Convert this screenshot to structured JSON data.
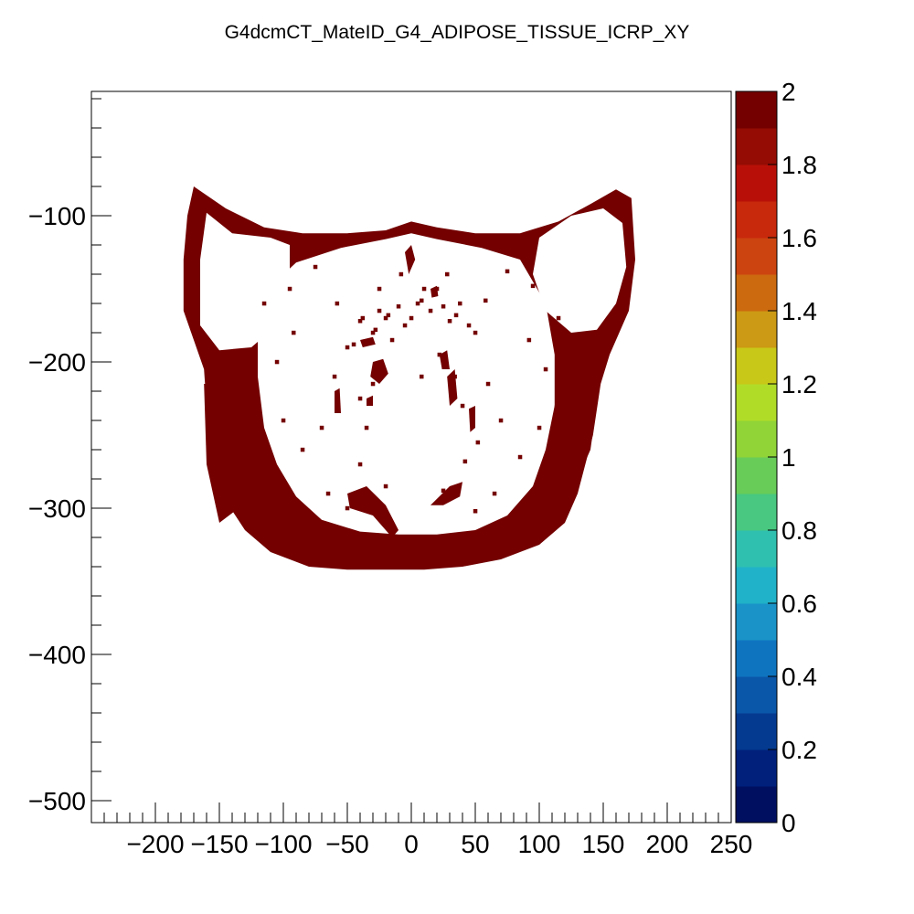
{
  "chart_data": {
    "type": "heatmap",
    "title": "G4dcmCT_MateID_G4_ADIPOSE_TISSUE_ICRP_XY",
    "xlabel": "",
    "ylabel": "",
    "xlim": [
      -250,
      250
    ],
    "ylim": [
      -515,
      -15
    ],
    "x_ticks": [
      -200,
      -150,
      -100,
      -50,
      0,
      50,
      100,
      150,
      200,
      250
    ],
    "y_ticks": [
      -100,
      -200,
      -300,
      -400,
      -500
    ],
    "x_tick_labels": [
      "−200",
      "−150",
      "−100",
      "−50",
      "0",
      "50",
      "100",
      "150",
      "200",
      "250"
    ],
    "y_tick_labels": [
      "−100",
      "−200",
      "−300",
      "−400",
      "−500"
    ],
    "colorbar": {
      "min": 0,
      "max": 2,
      "labels": [
        "0",
        "0.2",
        "0.4",
        "0.6",
        "0.8",
        "1",
        "1.2",
        "1.4",
        "1.6",
        "1.8",
        "2"
      ],
      "colors": [
        "#000f60",
        "#00207c",
        "#043a90",
        "#0a56a8",
        "#0e74c0",
        "#1a94c8",
        "#20b2c8",
        "#30c0b0",
        "#48c880",
        "#68cc58",
        "#90d438",
        "#b0dc28",
        "#c8c818",
        "#cc9a14",
        "#cc6a10",
        "#cc4410",
        "#c8280c",
        "#b81008",
        "#940c04",
        "#740000"
      ]
    },
    "fill_value": 2,
    "fill_color": "#740000",
    "regions": {
      "outer_boundary": [
        [
          -170,
          -80
        ],
        [
          -145,
          -95
        ],
        [
          -115,
          -108
        ],
        [
          -85,
          -112
        ],
        [
          -50,
          -112
        ],
        [
          -20,
          -110
        ],
        [
          0,
          -104
        ],
        [
          20,
          -108
        ],
        [
          50,
          -112
        ],
        [
          85,
          -112
        ],
        [
          115,
          -104
        ],
        [
          140,
          -92
        ],
        [
          160,
          -82
        ],
        [
          172,
          -88
        ],
        [
          175,
          -130
        ],
        [
          170,
          -165
        ],
        [
          155,
          -195
        ],
        [
          148,
          -215
        ],
        [
          142,
          -250
        ],
        [
          130,
          -290
        ],
        [
          120,
          -310
        ],
        [
          100,
          -325
        ],
        [
          70,
          -335
        ],
        [
          40,
          -340
        ],
        [
          10,
          -342
        ],
        [
          -20,
          -342
        ],
        [
          -50,
          -342
        ],
        [
          -80,
          -340
        ],
        [
          -110,
          -330
        ],
        [
          -130,
          -315
        ],
        [
          -145,
          -295
        ],
        [
          -155,
          -260
        ],
        [
          -160,
          -230
        ],
        [
          -162,
          -205
        ],
        [
          -170,
          -185
        ],
        [
          -178,
          -165
        ],
        [
          -178,
          -130
        ],
        [
          -175,
          -100
        ]
      ],
      "inner_cavity": [
        [
          -55,
          -122
        ],
        [
          -20,
          -116
        ],
        [
          0,
          -112
        ],
        [
          20,
          -116
        ],
        [
          55,
          -122
        ],
        [
          85,
          -130
        ],
        [
          105,
          -160
        ],
        [
          112,
          -195
        ],
        [
          112,
          -230
        ],
        [
          105,
          -260
        ],
        [
          95,
          -285
        ],
        [
          75,
          -305
        ],
        [
          50,
          -315
        ],
        [
          20,
          -318
        ],
        [
          -10,
          -318
        ],
        [
          -40,
          -316
        ],
        [
          -70,
          -308
        ],
        [
          -90,
          -292
        ],
        [
          -105,
          -270
        ],
        [
          -115,
          -245
        ],
        [
          -120,
          -210
        ],
        [
          -120,
          -175
        ],
        [
          -112,
          -150
        ],
        [
          -90,
          -132
        ]
      ],
      "left_lobe": [
        [
          -160,
          -98
        ],
        [
          -140,
          -112
        ],
        [
          -110,
          -115
        ],
        [
          -95,
          -120
        ],
        [
          -95,
          -150
        ],
        [
          -105,
          -175
        ],
        [
          -125,
          -190
        ],
        [
          -150,
          -192
        ],
        [
          -165,
          -175
        ],
        [
          -165,
          -130
        ]
      ],
      "right_lobe": [
        [
          100,
          -115
        ],
        [
          125,
          -100
        ],
        [
          150,
          -95
        ],
        [
          165,
          -105
        ],
        [
          168,
          -135
        ],
        [
          160,
          -160
        ],
        [
          145,
          -178
        ],
        [
          125,
          -180
        ],
        [
          105,
          -165
        ],
        [
          95,
          -140
        ]
      ],
      "left_notch": [
        [
          -162,
          -215
        ],
        [
          -130,
          -215
        ],
        [
          -125,
          -260
        ],
        [
          -135,
          -300
        ],
        [
          -150,
          -310
        ],
        [
          -160,
          -270
        ]
      ],
      "right_notch": [
        [
          118,
          -200
        ],
        [
          150,
          -198
        ],
        [
          140,
          -260
        ],
        [
          120,
          -300
        ],
        [
          112,
          -280
        ],
        [
          112,
          -230
        ]
      ]
    },
    "specks": [
      [
        -50,
        -190
      ],
      [
        -45,
        -188
      ],
      [
        -40,
        -172
      ],
      [
        -38,
        -170
      ],
      [
        -30,
        -180
      ],
      [
        -28,
        -178
      ],
      [
        -25,
        -165
      ],
      [
        -20,
        -170
      ],
      [
        -18,
        -168
      ],
      [
        -10,
        -162
      ],
      [
        -5,
        -175
      ],
      [
        0,
        -170
      ],
      [
        5,
        -160
      ],
      [
        8,
        -158
      ],
      [
        15,
        -165
      ],
      [
        20,
        -150
      ],
      [
        25,
        -162
      ],
      [
        30,
        -172
      ],
      [
        35,
        -168
      ],
      [
        38,
        -160
      ],
      [
        45,
        -175
      ],
      [
        50,
        -180
      ],
      [
        -60,
        -210
      ],
      [
        60,
        -215
      ],
      [
        -70,
        -245
      ],
      [
        70,
        -240
      ],
      [
        -85,
        -260
      ],
      [
        85,
        -265
      ],
      [
        -95,
        -150
      ],
      [
        95,
        -148
      ],
      [
        -75,
        -135
      ],
      [
        75,
        -138
      ],
      [
        -40,
        -225
      ],
      [
        40,
        -230
      ],
      [
        10,
        -150
      ],
      [
        -15,
        -185
      ],
      [
        22,
        -195
      ],
      [
        -35,
        -245
      ],
      [
        52,
        -255
      ],
      [
        -65,
        -290
      ],
      [
        65,
        -290
      ],
      [
        -50,
        -300
      ],
      [
        50,
        -302
      ],
      [
        -5,
        -320
      ],
      [
        15,
        -325
      ],
      [
        -25,
        -150
      ],
      [
        28,
        -140
      ],
      [
        -92,
        -180
      ],
      [
        92,
        -185
      ],
      [
        -58,
        -160
      ],
      [
        58,
        -158
      ],
      [
        0,
        -130
      ],
      [
        -8,
        -140
      ],
      [
        8,
        -210
      ],
      [
        -30,
        -215
      ],
      [
        34,
        -210
      ],
      [
        -100,
        -240
      ],
      [
        100,
        -245
      ],
      [
        -105,
        -200
      ],
      [
        105,
        -205
      ],
      [
        -85,
        -310
      ],
      [
        85,
        -315
      ],
      [
        -115,
        -160
      ],
      [
        115,
        -170
      ],
      [
        -40,
        -270
      ],
      [
        42,
        -268
      ],
      [
        -20,
        -285
      ],
      [
        25,
        -288
      ]
    ],
    "blobs": [
      [
        [
          -5,
          -125
        ],
        [
          0,
          -120
        ],
        [
          3,
          -130
        ],
        [
          -2,
          -140
        ]
      ],
      [
        [
          -30,
          -200
        ],
        [
          -22,
          -198
        ],
        [
          -18,
          -208
        ],
        [
          -25,
          -215
        ],
        [
          -32,
          -210
        ]
      ],
      [
        [
          28,
          -210
        ],
        [
          34,
          -205
        ],
        [
          36,
          -225
        ],
        [
          30,
          -230
        ]
      ],
      [
        [
          22,
          -195
        ],
        [
          28,
          -192
        ],
        [
          30,
          -205
        ],
        [
          24,
          -205
        ]
      ],
      [
        [
          -40,
          -185
        ],
        [
          -30,
          -183
        ],
        [
          -28,
          -188
        ],
        [
          -38,
          -190
        ]
      ],
      [
        [
          -50,
          -290
        ],
        [
          -35,
          -285
        ],
        [
          -20,
          -298
        ],
        [
          -10,
          -315
        ],
        [
          -15,
          -320
        ],
        [
          -30,
          -305
        ],
        [
          -48,
          -300
        ]
      ],
      [
        [
          15,
          -298
        ],
        [
          30,
          -285
        ],
        [
          40,
          -282
        ],
        [
          38,
          -292
        ],
        [
          25,
          -298
        ]
      ],
      [
        [
          -60,
          -220
        ],
        [
          -56,
          -218
        ],
        [
          -55,
          -235
        ],
        [
          -60,
          -235
        ]
      ],
      [
        [
          45,
          -232
        ],
        [
          50,
          -230
        ],
        [
          50,
          -245
        ],
        [
          46,
          -248
        ]
      ],
      [
        [
          -35,
          -225
        ],
        [
          -30,
          -223
        ],
        [
          -30,
          -230
        ],
        [
          -35,
          -230
        ]
      ],
      [
        [
          15,
          -150
        ],
        [
          20,
          -148
        ],
        [
          21,
          -155
        ],
        [
          16,
          -156
        ]
      ]
    ]
  }
}
